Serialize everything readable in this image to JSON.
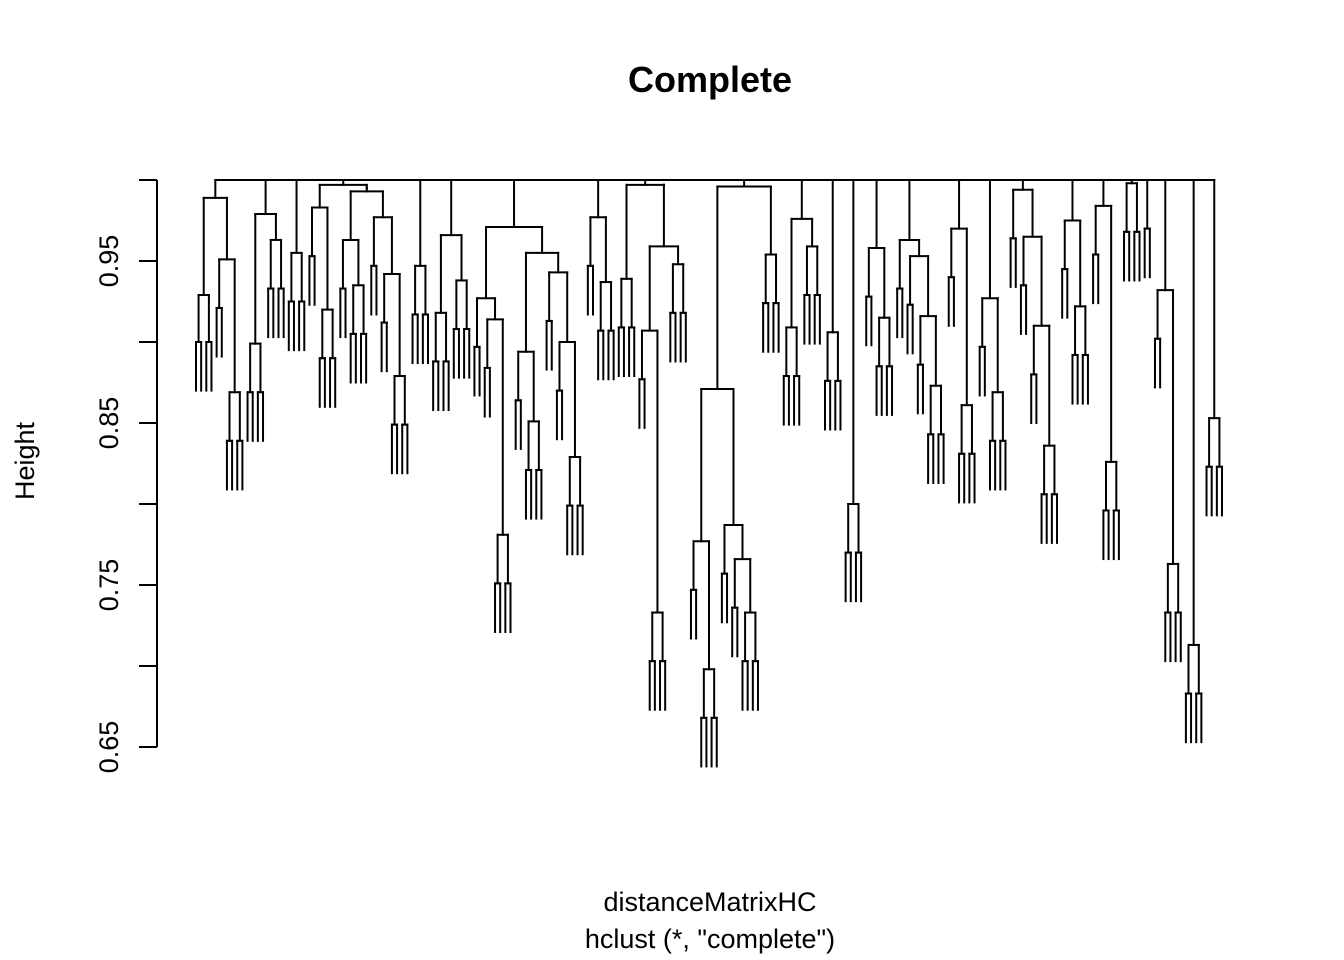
{
  "chart_data": {
    "type": "dendrogram",
    "title": "Complete",
    "xlabel": "distanceMatrixHC",
    "sublabel": "hclust (*, \"complete\")",
    "ylabel": "Height",
    "ylim": [
      0.65,
      1.0
    ],
    "y_ticks": [
      0.65,
      0.7,
      0.75,
      0.8,
      0.85,
      0.9,
      0.95,
      1.0
    ],
    "y_tick_labels": [
      "0.65",
      "",
      "0.75",
      "",
      "0.85",
      "",
      "0.95",
      ""
    ],
    "n_leaves": 128,
    "leaf_height": 0.03,
    "root_height": 1.0,
    "tree": [
      {
        "h": 0.989,
        "c": [
          {
            "h": 0.929,
            "c": [
              0.9,
              0.9
            ]
          },
          {
            "h": 0.951,
            "c": [
              0.921,
              {
                "h": 0.869,
                "c": [
                  0.839,
                  0.839
                ]
              }
            ]
          }
        ]
      },
      {
        "h": 0.979,
        "c": [
          {
            "h": 0.899,
            "c": [
              0.869,
              0.869
            ]
          },
          {
            "h": 0.963,
            "c": [
              0.933,
              0.933
            ]
          }
        ]
      },
      {
        "h": 0.955,
        "c": [
          0.925,
          0.925
        ]
      },
      {
        "h": 0.997,
        "c": [
          {
            "h": 0.983,
            "c": [
              0.953,
              {
                "h": 0.92,
                "c": [
                  0.89,
                  0.89
                ]
              }
            ]
          },
          {
            "h": 0.995,
            "c": [
              {
                "h": 0.993,
                "c": [
                  {
                    "h": 0.963,
                    "c": [
                      0.933,
                      {
                        "h": 0.935,
                        "c": [
                          0.905,
                          0.905
                        ]
                      }
                    ]
                  },
                  {
                    "h": 0.977,
                    "c": [
                      0.947,
                      {
                        "h": 0.942,
                        "c": [
                          0.912,
                          {
                            "h": 0.879,
                            "c": [
                              0.849,
                              0.849
                            ]
                          }
                        ]
                      }
                    ]
                  }
                ]
              }
            ]
          }
        ]
      },
      {
        "h": 0.947,
        "c": [
          0.917,
          0.917
        ]
      },
      {
        "h": 0.966,
        "c": [
          {
            "h": 0.918,
            "c": [
              0.888,
              0.888
            ]
          },
          {
            "h": 0.938,
            "c": [
              0.908,
              0.908
            ]
          }
        ]
      },
      {
        "h": 0.971,
        "c": [
          {
            "h": 0.927,
            "c": [
              0.897,
              {
                "h": 0.914,
                "c": [
                  0.884,
                  {
                    "h": 0.781,
                    "c": [
                      0.751,
                      0.751
                    ]
                  }
                ]
              }
            ]
          },
          {
            "h": 0.955,
            "c": [
              {
                "h": 0.894,
                "c": [
                  0.864,
                  {
                    "h": 0.851,
                    "c": [
                      0.821,
                      0.821
                    ]
                  }
                ]
              },
              {
                "h": 0.943,
                "c": [
                  0.913,
                  {
                    "h": 0.9,
                    "c": [
                      0.87,
                      {
                        "h": 0.829,
                        "c": [
                          0.799,
                          0.799
                        ]
                      }
                    ]
                  }
                ]
              }
            ]
          }
        ]
      },
      {
        "h": 0.977,
        "c": [
          0.947,
          {
            "h": 0.937,
            "c": [
              0.907,
              0.907
            ]
          }
        ]
      },
      {
        "h": 0.997,
        "c": [
          {
            "h": 0.939,
            "c": [
              0.909,
              0.909
            ]
          },
          {
            "h": 0.997,
            "c": [
              {
                "h": 0.959,
                "c": [
                  {
                    "h": 0.907,
                    "c": [
                      0.877,
                      {
                        "h": 0.733,
                        "c": [
                          0.703,
                          0.703
                        ]
                      }
                    ]
                  },
                  {
                    "h": 0.948,
                    "c": [
                      0.918,
                      0.918
                    ]
                  }
                ]
              }
            ]
          }
        ]
      },
      {
        "h": 0.996,
        "c": [
          {
            "h": 0.871,
            "c": [
              {
                "h": 0.777,
                "c": [
                  0.747,
                  {
                    "h": 0.698,
                    "c": [
                      0.668,
                      0.668
                    ]
                  }
                ]
              },
              {
                "h": 0.787,
                "c": [
                  0.757,
                  {
                    "h": 0.766,
                    "c": [
                      0.736,
                      {
                        "h": 0.733,
                        "c": [
                          0.703,
                          0.703
                        ]
                      }
                    ]
                  }
                ]
              }
            ]
          },
          {
            "h": 0.954,
            "c": [
              0.924,
              0.924
            ]
          }
        ]
      },
      {
        "h": 0.976,
        "c": [
          {
            "h": 0.909,
            "c": [
              0.879,
              0.879
            ]
          },
          {
            "h": 0.959,
            "c": [
              0.929,
              0.929
            ]
          }
        ]
      },
      {
        "h": 0.906,
        "c": [
          0.876,
          0.876
        ]
      },
      {
        "h": 0.8,
        "c": [
          0.77,
          0.77
        ]
      },
      {
        "h": 0.958,
        "c": [
          0.928,
          {
            "h": 0.915,
            "c": [
              0.885,
              0.885
            ]
          }
        ]
      },
      {
        "h": 0.963,
        "c": [
          0.933,
          {
            "h": 0.953,
            "c": [
              0.923,
              {
                "h": 0.916,
                "c": [
                  0.886,
                  {
                    "h": 0.873,
                    "c": [
                      0.843,
                      0.843
                    ]
                  }
                ]
              }
            ]
          }
        ]
      },
      {
        "h": 0.97,
        "c": [
          0.94,
          {
            "h": 0.861,
            "c": [
              0.831,
              0.831
            ]
          }
        ]
      },
      {
        "h": 0.927,
        "c": [
          0.897,
          {
            "h": 0.869,
            "c": [
              0.839,
              0.839
            ]
          }
        ]
      },
      {
        "h": 0.994,
        "c": [
          0.964,
          {
            "h": 0.965,
            "c": [
              0.935,
              {
                "h": 0.91,
                "c": [
                  0.88,
                  {
                    "h": 0.836,
                    "c": [
                      0.806,
                      0.806
                    ]
                  }
                ]
              }
            ]
          }
        ]
      },
      {
        "h": 0.975,
        "c": [
          0.945,
          {
            "h": 0.922,
            "c": [
              0.892,
              0.892
            ]
          }
        ]
      },
      {
        "h": 0.984,
        "c": [
          0.954,
          {
            "h": 0.826,
            "c": [
              0.796,
              0.796
            ]
          }
        ]
      },
      {
        "h": 0.998,
        "c": [
          0.968,
          0.968
        ]
      },
      0.97,
      {
        "h": 0.932,
        "c": [
          0.902,
          {
            "h": 0.763,
            "c": [
              0.733,
              0.733
            ]
          }
        ]
      },
      {
        "h": 0.713,
        "c": [
          0.683,
          0.683
        ]
      },
      {
        "h": 0.853,
        "c": [
          0.823,
          0.823
        ]
      }
    ]
  }
}
